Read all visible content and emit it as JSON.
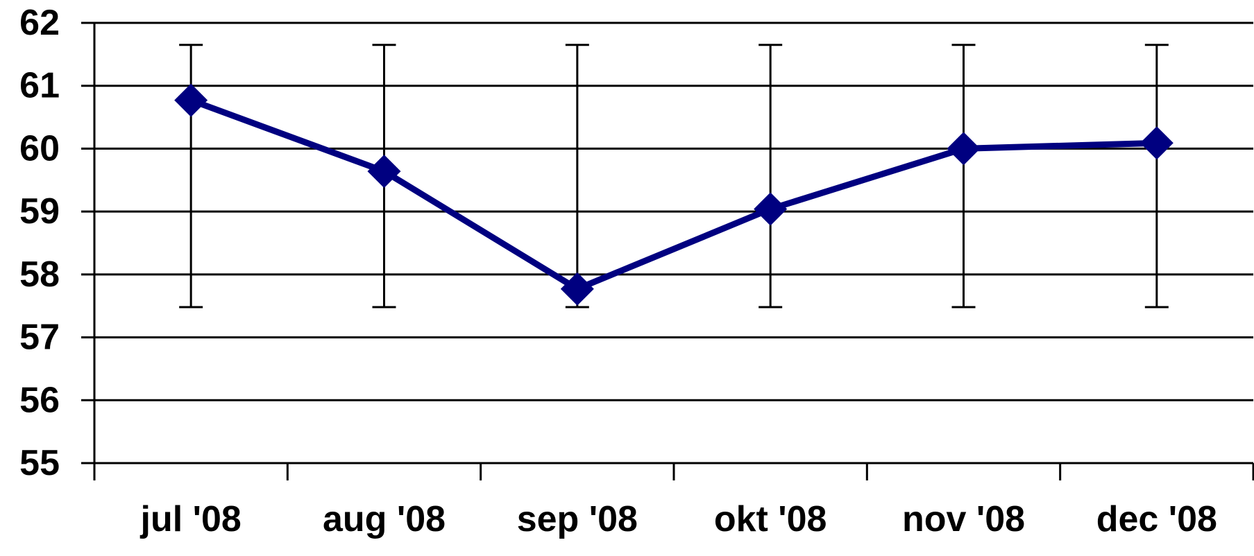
{
  "chart_data": {
    "type": "line",
    "title": "",
    "xlabel": "",
    "ylabel": "",
    "categories": [
      "jul '08",
      "aug '08",
      "sep '08",
      "okt '08",
      "nov '08",
      "dec '08"
    ],
    "series": [
      {
        "values": [
          60.77,
          59.64,
          57.77,
          59.04,
          60.0,
          60.09
        ],
        "error_low": [
          57.48,
          57.48,
          57.48,
          57.48,
          57.48,
          57.48
        ],
        "error_high": [
          61.65,
          61.65,
          61.65,
          61.65,
          61.65,
          61.65
        ],
        "marker": "diamond",
        "color": "#000080"
      }
    ],
    "ylim": [
      55,
      62
    ],
    "yticks": [
      "55",
      "56",
      "57",
      "58",
      "59",
      "60",
      "61",
      "62"
    ],
    "grid": true,
    "legend": "none",
    "colors": {
      "line": "#000080",
      "grid": "#000000",
      "error_bar": "#000000"
    }
  }
}
